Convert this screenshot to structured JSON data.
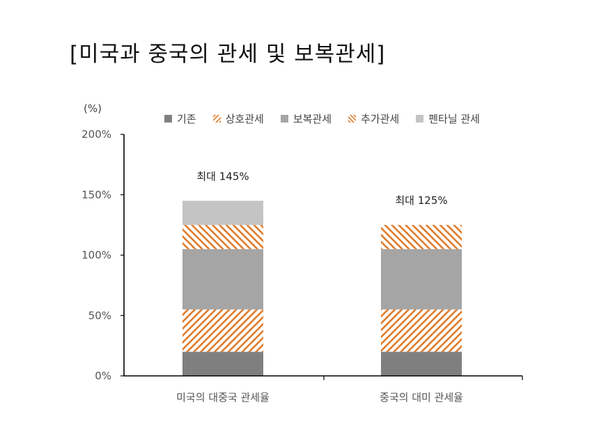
{
  "title": "[미국과 중국의 관세 및 보복관세]",
  "colors": {
    "base": "#7f7f7f",
    "reciprocal": "#e07b2a",
    "retaliatory": "#a5a5a5",
    "additional": "#e07b2a",
    "fentanyl": "#c4c4c4",
    "axis": "#000000"
  },
  "chart_data": {
    "type": "bar",
    "stacked": true,
    "unit": "(%)",
    "categories": [
      "미국의 대중국 관세율",
      "중국의 대미 관세율"
    ],
    "series": [
      {
        "name": "기존",
        "values": [
          20,
          20
        ],
        "fill": "solid",
        "color": "#7f7f7f"
      },
      {
        "name": "상호관세",
        "values": [
          35,
          35
        ],
        "fill": "hatch",
        "color": "#e07b2a"
      },
      {
        "name": "보복관세",
        "values": [
          50,
          50
        ],
        "fill": "solid",
        "color": "#a5a5a5"
      },
      {
        "name": "추가관세",
        "values": [
          20,
          20
        ],
        "fill": "hatch",
        "color": "#e07b2a"
      },
      {
        "name": "펜타닐 관세",
        "values": [
          20,
          0
        ],
        "fill": "solid",
        "color": "#c4c4c4"
      }
    ],
    "annotations": [
      "최대 145%",
      "최대 125%"
    ],
    "ylim": [
      0,
      200
    ],
    "yticks": [
      "0%",
      "50%",
      "100%",
      "150%",
      "200%"
    ],
    "ytick_values": [
      0,
      50,
      100,
      150,
      200
    ],
    "grid": false,
    "legend_position": "top"
  }
}
